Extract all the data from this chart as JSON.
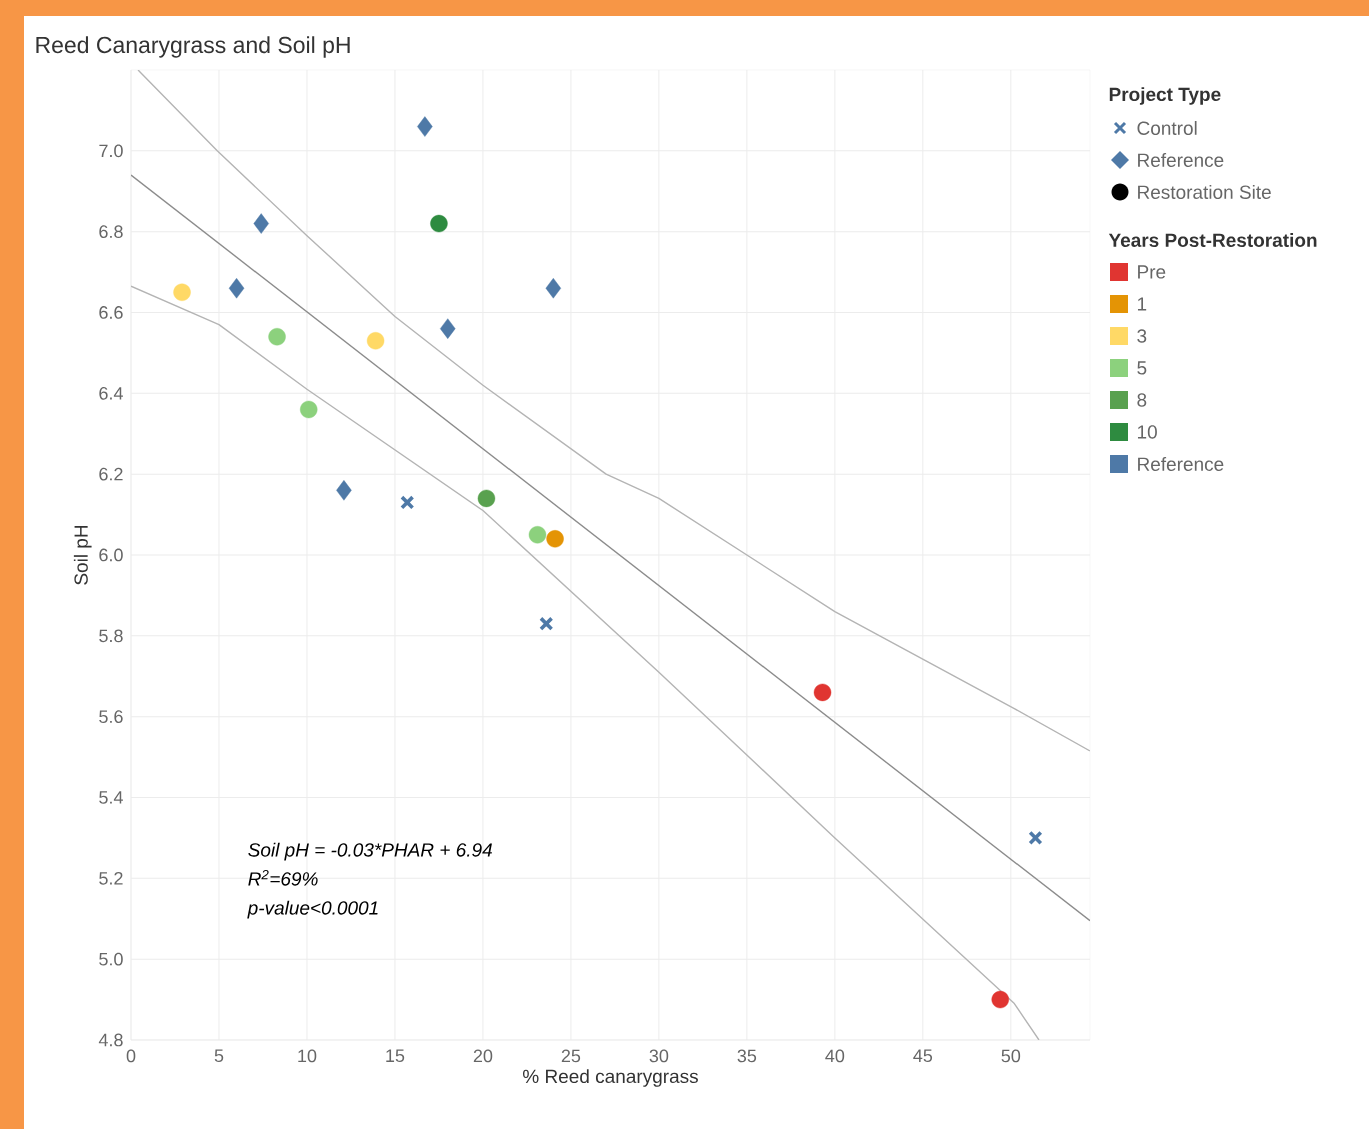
{
  "chart_data": {
    "type": "scatter",
    "title": "Reed Canarygrass and Soil pH",
    "xlabel": "% Reed canarygrass",
    "ylabel": "Soil pH",
    "legend_title": "Project Type",
    "legend": "right",
    "grid": true,
    "xlim": [
      0,
      54.5
    ],
    "ylim": [
      4.8,
      7.2
    ],
    "xticks": [
      0,
      5,
      10,
      15,
      20,
      25,
      30,
      35,
      40,
      45,
      50
    ],
    "yticks": [
      4.8,
      {
        "value": 5.0,
        "label": "5.0"
      },
      5.2,
      5.4,
      5.6,
      5.8,
      {
        "value": 6.0,
        "label": "6.0"
      },
      6.2,
      6.4,
      6.6,
      6.8,
      {
        "value": 7.0,
        "label": "7.0"
      }
    ],
    "annotations": [
      "Soil pH = -0.03*PHAR + 6.94",
      "R$^{2}$=69%",
      "p-value<0.0001",
      "Restoration Site",
      "Years Post-Restoration",
      "Reference"
    ],
    "series": [
      {
        "name": "Control",
        "color": "#4e79a7",
        "marker": "cross",
        "x": [
          15.7,
          23.6,
          51.4
        ],
        "values": [
          6.13,
          5.83,
          5.3
        ]
      },
      {
        "name": "Reference",
        "color": "#4e79a7",
        "marker": "diamond",
        "x": [
          16.7,
          7.4,
          6.0,
          24.0,
          18.0,
          12.1
        ],
        "values": [
          7.06,
          6.82,
          6.66,
          6.66,
          6.56,
          6.16
        ]
      },
      {
        "name": "Pre",
        "color": "#e03531",
        "marker": "circle",
        "x": [
          39.3,
          49.4
        ],
        "values": [
          5.66,
          4.9
        ]
      },
      {
        "name": "1",
        "color": "#e49405",
        "marker": "circle",
        "x": [
          24.1
        ],
        "values": [
          6.04
        ]
      },
      {
        "name": "3",
        "color": "#ffd966",
        "marker": "circle",
        "x": [
          2.9,
          13.9
        ],
        "values": [
          6.65,
          6.53
        ]
      },
      {
        "name": "5",
        "color": "#8cd17d",
        "marker": "circle",
        "x": [
          8.3,
          10.1,
          23.1
        ],
        "values": [
          6.54,
          6.36,
          6.05
        ]
      },
      {
        "name": "8",
        "color": "#59a14f",
        "marker": "circle",
        "x": [
          20.2
        ],
        "values": [
          6.14
        ]
      },
      {
        "name": "10",
        "color": "#2e8b40",
        "marker": "circle",
        "x": [
          17.5
        ],
        "values": [
          6.82
        ]
      },
      {
        "type": "line",
        "color": "#8c8c8c",
        "marker": "none",
        "x": [
          0,
          54.5
        ],
        "values": [
          6.94,
          5.095
        ]
      },
      {
        "type": "line",
        "color": "#b4b4b4",
        "marker": "none",
        "x": [
          0.4,
          4.9,
          10,
          15,
          20,
          27,
          30,
          40,
          50.2,
          54.5
        ],
        "values": [
          7.2,
          7.0,
          6.79,
          6.59,
          6.42,
          6.2,
          6.14,
          5.86,
          5.62,
          5.515
        ]
      },
      {
        "type": "line",
        "color": "#b4b4b4",
        "marker": "none",
        "x": [
          0,
          5,
          10,
          20,
          30,
          40,
          50.2,
          51.6
        ],
        "values": [
          6.665,
          6.57,
          6.41,
          6.11,
          5.71,
          5.3,
          4.89,
          4.8
        ]
      }
    ]
  }
}
